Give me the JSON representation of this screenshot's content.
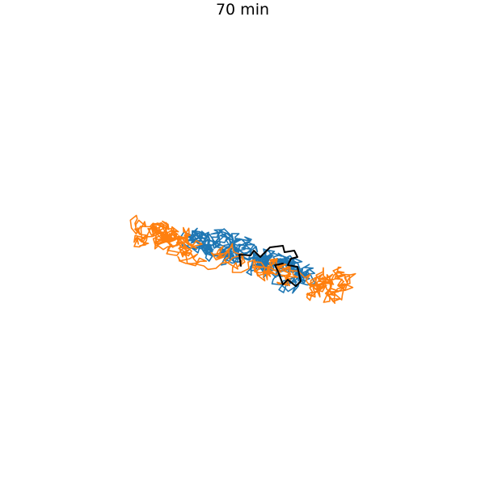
{
  "title": "70 min",
  "colors": {
    "blue": "#1f77b4",
    "orange": "#ff7f0e",
    "black": "#000000",
    "background": "#ffffff"
  },
  "legend": "none",
  "axes": "hidden",
  "traces": [
    {
      "color_key": "blue"
    },
    {
      "color_key": "orange"
    },
    {
      "color_key": "black"
    }
  ]
}
